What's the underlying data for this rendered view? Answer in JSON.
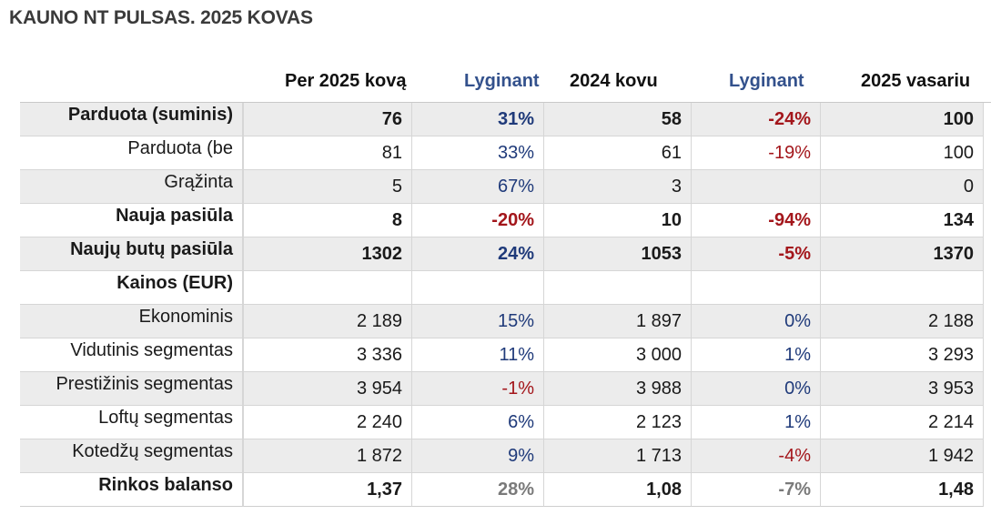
{
  "title": "KAUNO NT PULSAS. 2025 KOVAS",
  "headers": {
    "col1": "Per 2025 kovą",
    "col2": "Lyginant",
    "col3": "2024 kovu",
    "col4": "Lyginant",
    "col5": "2025 vasariu"
  },
  "rows": [
    {
      "label": "Parduota (suminis)",
      "c1": "76",
      "c2": "31%",
      "c3": "58",
      "c4": "-24%",
      "c5": "100"
    },
    {
      "label": "Parduota (be",
      "c1": "81",
      "c2": "33%",
      "c3": "61",
      "c4": "-19%",
      "c5": "100"
    },
    {
      "label": "Grąžinta",
      "c1": "5",
      "c2": "67%",
      "c3": "3",
      "c4": "",
      "c5": "0"
    },
    {
      "label": "Nauja pasiūla",
      "c1": "8",
      "c2": "-20%",
      "c3": "10",
      "c4": "-94%",
      "c5": "134"
    },
    {
      "label": "Naujų butų pasiūla",
      "c1": "1302",
      "c2": "24%",
      "c3": "1053",
      "c4": "-5%",
      "c5": "1370"
    },
    {
      "label": "Kainos (EUR)",
      "c1": "",
      "c2": "",
      "c3": "",
      "c4": "",
      "c5": ""
    },
    {
      "label": "Ekonominis",
      "c1": "2 189",
      "c2": "15%",
      "c3": "1 897",
      "c4": "0%",
      "c5": "2 188"
    },
    {
      "label": "Vidutinis segmentas",
      "c1": "3 336",
      "c2": "11%",
      "c3": "3 000",
      "c4": "1%",
      "c5": "3 293"
    },
    {
      "label": "Prestižinis segmentas",
      "c1": "3 954",
      "c2": "-1%",
      "c3": "3 988",
      "c4": "0%",
      "c5": "3 953"
    },
    {
      "label": "Loftų segmentas",
      "c1": "2 240",
      "c2": "6%",
      "c3": "2 123",
      "c4": "1%",
      "c5": "2 214"
    },
    {
      "label": "Kotedžų segmentas",
      "c1": "1 872",
      "c2": "9%",
      "c3": "1 713",
      "c4": "-4%",
      "c5": "1 942"
    },
    {
      "label": "Rinkos balanso",
      "c1": "1,37",
      "c2": "28%",
      "c3": "1,08",
      "c4": "-7%",
      "c5": "1,48"
    }
  ],
  "colors": {
    "positive": "#1f3a7a",
    "negative": "#a3161b",
    "neutral": "#7a7a7a",
    "shaded_row": "#ececec"
  }
}
